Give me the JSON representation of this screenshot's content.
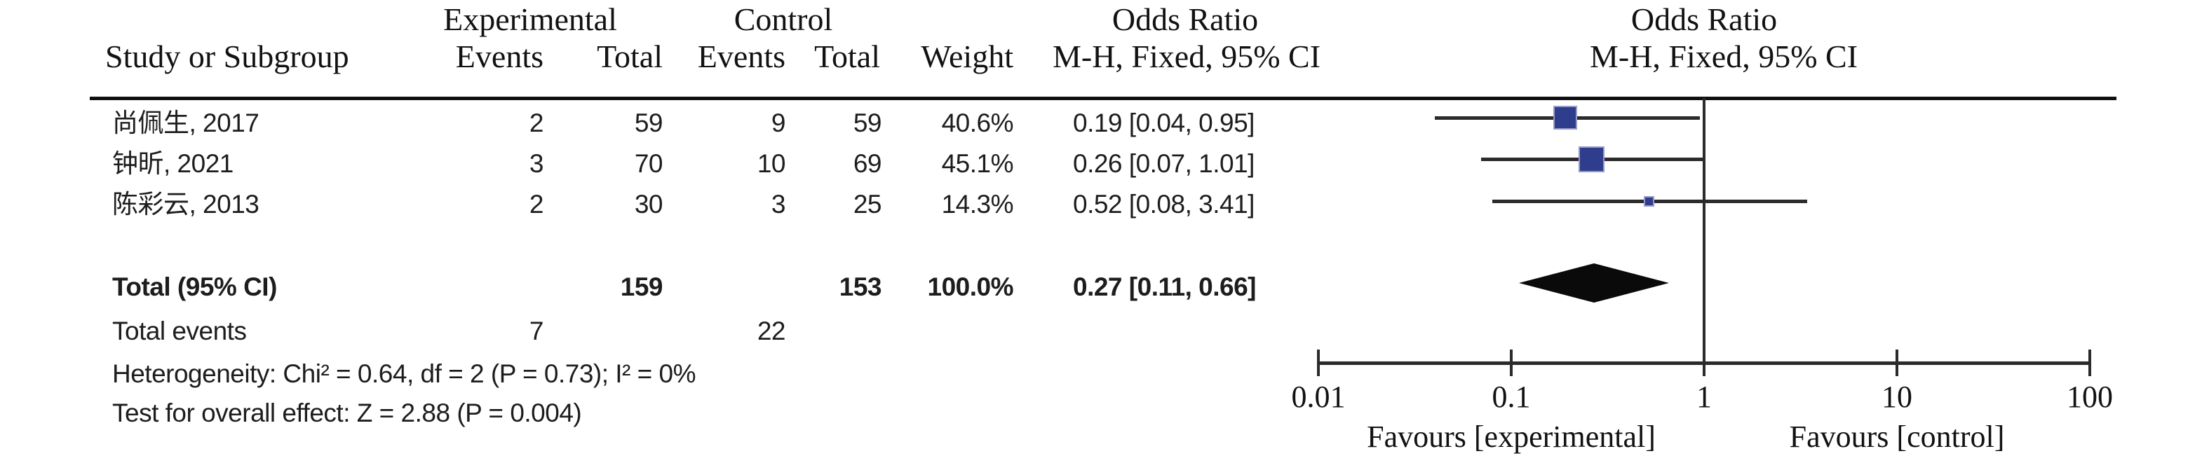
{
  "table": {
    "group_headers": {
      "experimental": "Experimental",
      "control": "Control",
      "odds_ratio_left": "Odds Ratio",
      "odds_ratio_right": "Odds Ratio"
    },
    "col_headers": {
      "study": "Study or Subgroup",
      "exp_events": "Events",
      "exp_total": "Total",
      "ctrl_events": "Events",
      "ctrl_total": "Total",
      "weight": "Weight",
      "mh_left": "M-H, Fixed, 95% CI",
      "mh_right": "M-H, Fixed, 95% CI"
    },
    "rows": [
      {
        "study": "尚佩生, 2017",
        "exp_events": "2",
        "exp_total": "59",
        "ctrl_events": "9",
        "ctrl_total": "59",
        "weight": "40.6%",
        "or_ci": "0.19 [0.04, 0.95]"
      },
      {
        "study": "钟昕, 2021",
        "exp_events": "3",
        "exp_total": "70",
        "ctrl_events": "10",
        "ctrl_total": "69",
        "weight": "45.1%",
        "or_ci": "0.26 [0.07, 1.01]"
      },
      {
        "study": "陈彩云, 2013",
        "exp_events": "2",
        "exp_total": "30",
        "ctrl_events": "3",
        "ctrl_total": "25",
        "weight": "14.3%",
        "or_ci": "0.52 [0.08, 3.41]"
      }
    ],
    "total_row": {
      "label": "Total (95% CI)",
      "exp_total": "159",
      "ctrl_total": "153",
      "weight": "100.0%",
      "or_ci": "0.27 [0.11, 0.66]"
    },
    "total_events": {
      "label": "Total events",
      "exp": "7",
      "ctrl": "22"
    },
    "heterogeneity": "Heterogeneity: Chi² = 0.64, df = 2 (P = 0.73); I² = 0%",
    "overall_effect": "Test for overall effect: Z = 2.88 (P = 0.004)"
  },
  "chart_data": {
    "type": "forest",
    "effect_measure": "Odds Ratio, M-H, Fixed, 95% CI",
    "x_scale": "log10",
    "x_range": [
      0.01,
      100
    ],
    "x_ticks": [
      0.01,
      0.1,
      1,
      10,
      100
    ],
    "x_tick_labels": [
      "0.01",
      "0.1",
      "1",
      "10",
      "100"
    ],
    "null_line": 1,
    "xlabel_left": "Favours [experimental]",
    "xlabel_right": "Favours [control]",
    "studies": [
      {
        "name": "尚佩生, 2017",
        "or": 0.19,
        "ci_low": 0.04,
        "ci_high": 0.95,
        "weight_pct": 40.6
      },
      {
        "name": "钟昕, 2021",
        "or": 0.26,
        "ci_low": 0.07,
        "ci_high": 1.01,
        "weight_pct": 45.1
      },
      {
        "name": "陈彩云, 2013",
        "or": 0.52,
        "ci_low": 0.08,
        "ci_high": 3.41,
        "weight_pct": 14.3
      }
    ],
    "total": {
      "or": 0.27,
      "ci_low": 0.11,
      "ci_high": 0.66
    }
  },
  "colors": {
    "square": "#2E3D8C",
    "square_border": "#9A9AC8",
    "line": "#2B2B2B",
    "diamond": "#0A0A0A",
    "text": "#1D1D1F"
  }
}
